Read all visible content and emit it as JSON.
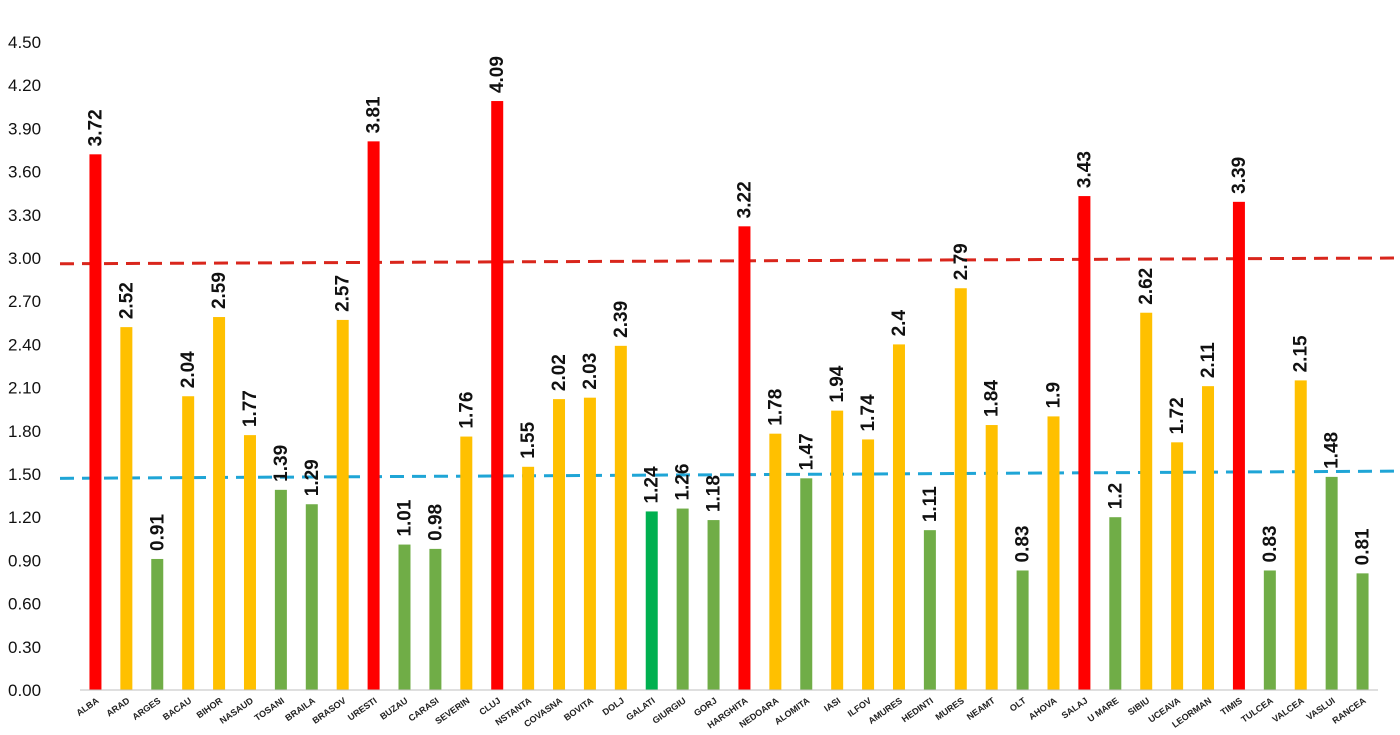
{
  "chart_data": {
    "type": "bar",
    "categories": [
      "ALBA",
      "ARAD",
      "ARGES",
      "BACAU",
      "BIHOR",
      "BISTRITA-NASAUD",
      "BOTOSANI",
      "BRAILA",
      "BRASOV",
      "BUCURESTI",
      "BUZAU",
      "CARAS-SEVERIN",
      "CALARASI",
      "CLUJ",
      "CONSTANTA",
      "COVASNA",
      "DAMBOVITA",
      "DOLJ",
      "GALATI",
      "GIURGIU",
      "GORJ",
      "HARGHITA",
      "HUNEDOARA",
      "IALOMITA",
      "IASI",
      "ILFOV",
      "MARAMURES",
      "MEHEDINTI",
      "MURES",
      "NEAMT",
      "OLT",
      "PRAHOVA",
      "SALAJ",
      "SATU MARE",
      "SIBIU",
      "SUCEAVA",
      "TELEORMAN",
      "TIMIS",
      "TULCEA",
      "VALCEA",
      "VASLUI",
      "VRANCEA"
    ],
    "category_labels": [
      "ALBA",
      "ARAD",
      "ARGES",
      "BACAU",
      "BIHOR",
      "NASAUD",
      "TOSANI",
      "BRAILA",
      "BRASOV",
      "URESTI",
      "BUZAU",
      "CARASI",
      "SEVERIN",
      "CLUJ",
      "NSTANTA",
      "COVASNA",
      "BOVITA",
      "DOLJ",
      "GALATI",
      "GIURGIU",
      "GORJ",
      "HARGHITA",
      "NEDOARA",
      "ALOMITA",
      "IASI",
      "ILFOV",
      "AMURES",
      "HEDINTI",
      "MURES",
      "NEAMT",
      "OLT",
      "AHOVA",
      "SALAJ",
      "U MARE",
      "SIBIU",
      "UCEAVA",
      "LEORMAN",
      "TIMIS",
      "TULCEA",
      "VALCEA",
      "VASLUI",
      "RANCEA"
    ],
    "values": [
      3.72,
      2.52,
      0.91,
      2.04,
      2.59,
      1.77,
      1.39,
      1.29,
      2.57,
      3.81,
      1.01,
      0.98,
      1.76,
      4.09,
      1.55,
      2.02,
      2.03,
      2.39,
      1.24,
      1.26,
      1.18,
      3.22,
      1.78,
      1.47,
      1.94,
      1.74,
      2.4,
      1.11,
      2.79,
      1.84,
      0.83,
      1.9,
      3.43,
      1.2,
      2.62,
      1.72,
      2.11,
      3.39,
      0.83,
      2.15,
      1.48,
      0.81
    ],
    "value_labels": [
      "3.72",
      "2.52",
      "0.91",
      "2.04",
      "2.59",
      "1.77",
      "1.39",
      "1.29",
      "2.57",
      "3.81",
      "1.01",
      "0.98",
      "1.76",
      "4.09",
      "1.55",
      "2.02",
      "2.03",
      "2.39",
      "1.24",
      "1.26",
      "1.18",
      "3.22",
      "1.78",
      "1.47",
      "1.94",
      "1.74",
      "2.4",
      "1.11",
      "2.79",
      "1.84",
      "0.83",
      "1.9",
      "3.43",
      "1.2",
      "2.62",
      "1.72",
      "2.11",
      "3.39",
      "0.83",
      "2.15",
      "1.48",
      "0.81"
    ],
    "colors": [
      "#ff0000",
      "#ffc000",
      "#70ad47",
      "#ffc000",
      "#ffc000",
      "#ffc000",
      "#70ad47",
      "#70ad47",
      "#ffc000",
      "#ff0000",
      "#70ad47",
      "#70ad47",
      "#ffc000",
      "#ff0000",
      "#ffc000",
      "#ffc000",
      "#ffc000",
      "#ffc000",
      "#00b050",
      "#70ad47",
      "#70ad47",
      "#ff0000",
      "#ffc000",
      "#70ad47",
      "#ffc000",
      "#ffc000",
      "#ffc000",
      "#70ad47",
      "#ffc000",
      "#ffc000",
      "#70ad47",
      "#ffc000",
      "#ff0000",
      "#70ad47",
      "#ffc000",
      "#ffc000",
      "#ffc000",
      "#ff0000",
      "#70ad47",
      "#ffc000",
      "#70ad47",
      "#70ad47"
    ],
    "yticks": [
      "0.00",
      "0.30",
      "0.60",
      "0.90",
      "1.20",
      "1.50",
      "1.80",
      "2.10",
      "2.40",
      "2.70",
      "3.00",
      "3.30",
      "3.60",
      "3.90",
      "4.20",
      "4.50"
    ],
    "ylim": [
      0,
      4.5
    ],
    "reference_lines": [
      {
        "color": "#d9261c",
        "y_start": 2.96,
        "y_end": 3.0
      },
      {
        "color": "#1fa5d6",
        "y_start": 1.47,
        "y_end": 1.52
      }
    ],
    "grid": false,
    "title": "",
    "xlabel": "",
    "ylabel": ""
  }
}
